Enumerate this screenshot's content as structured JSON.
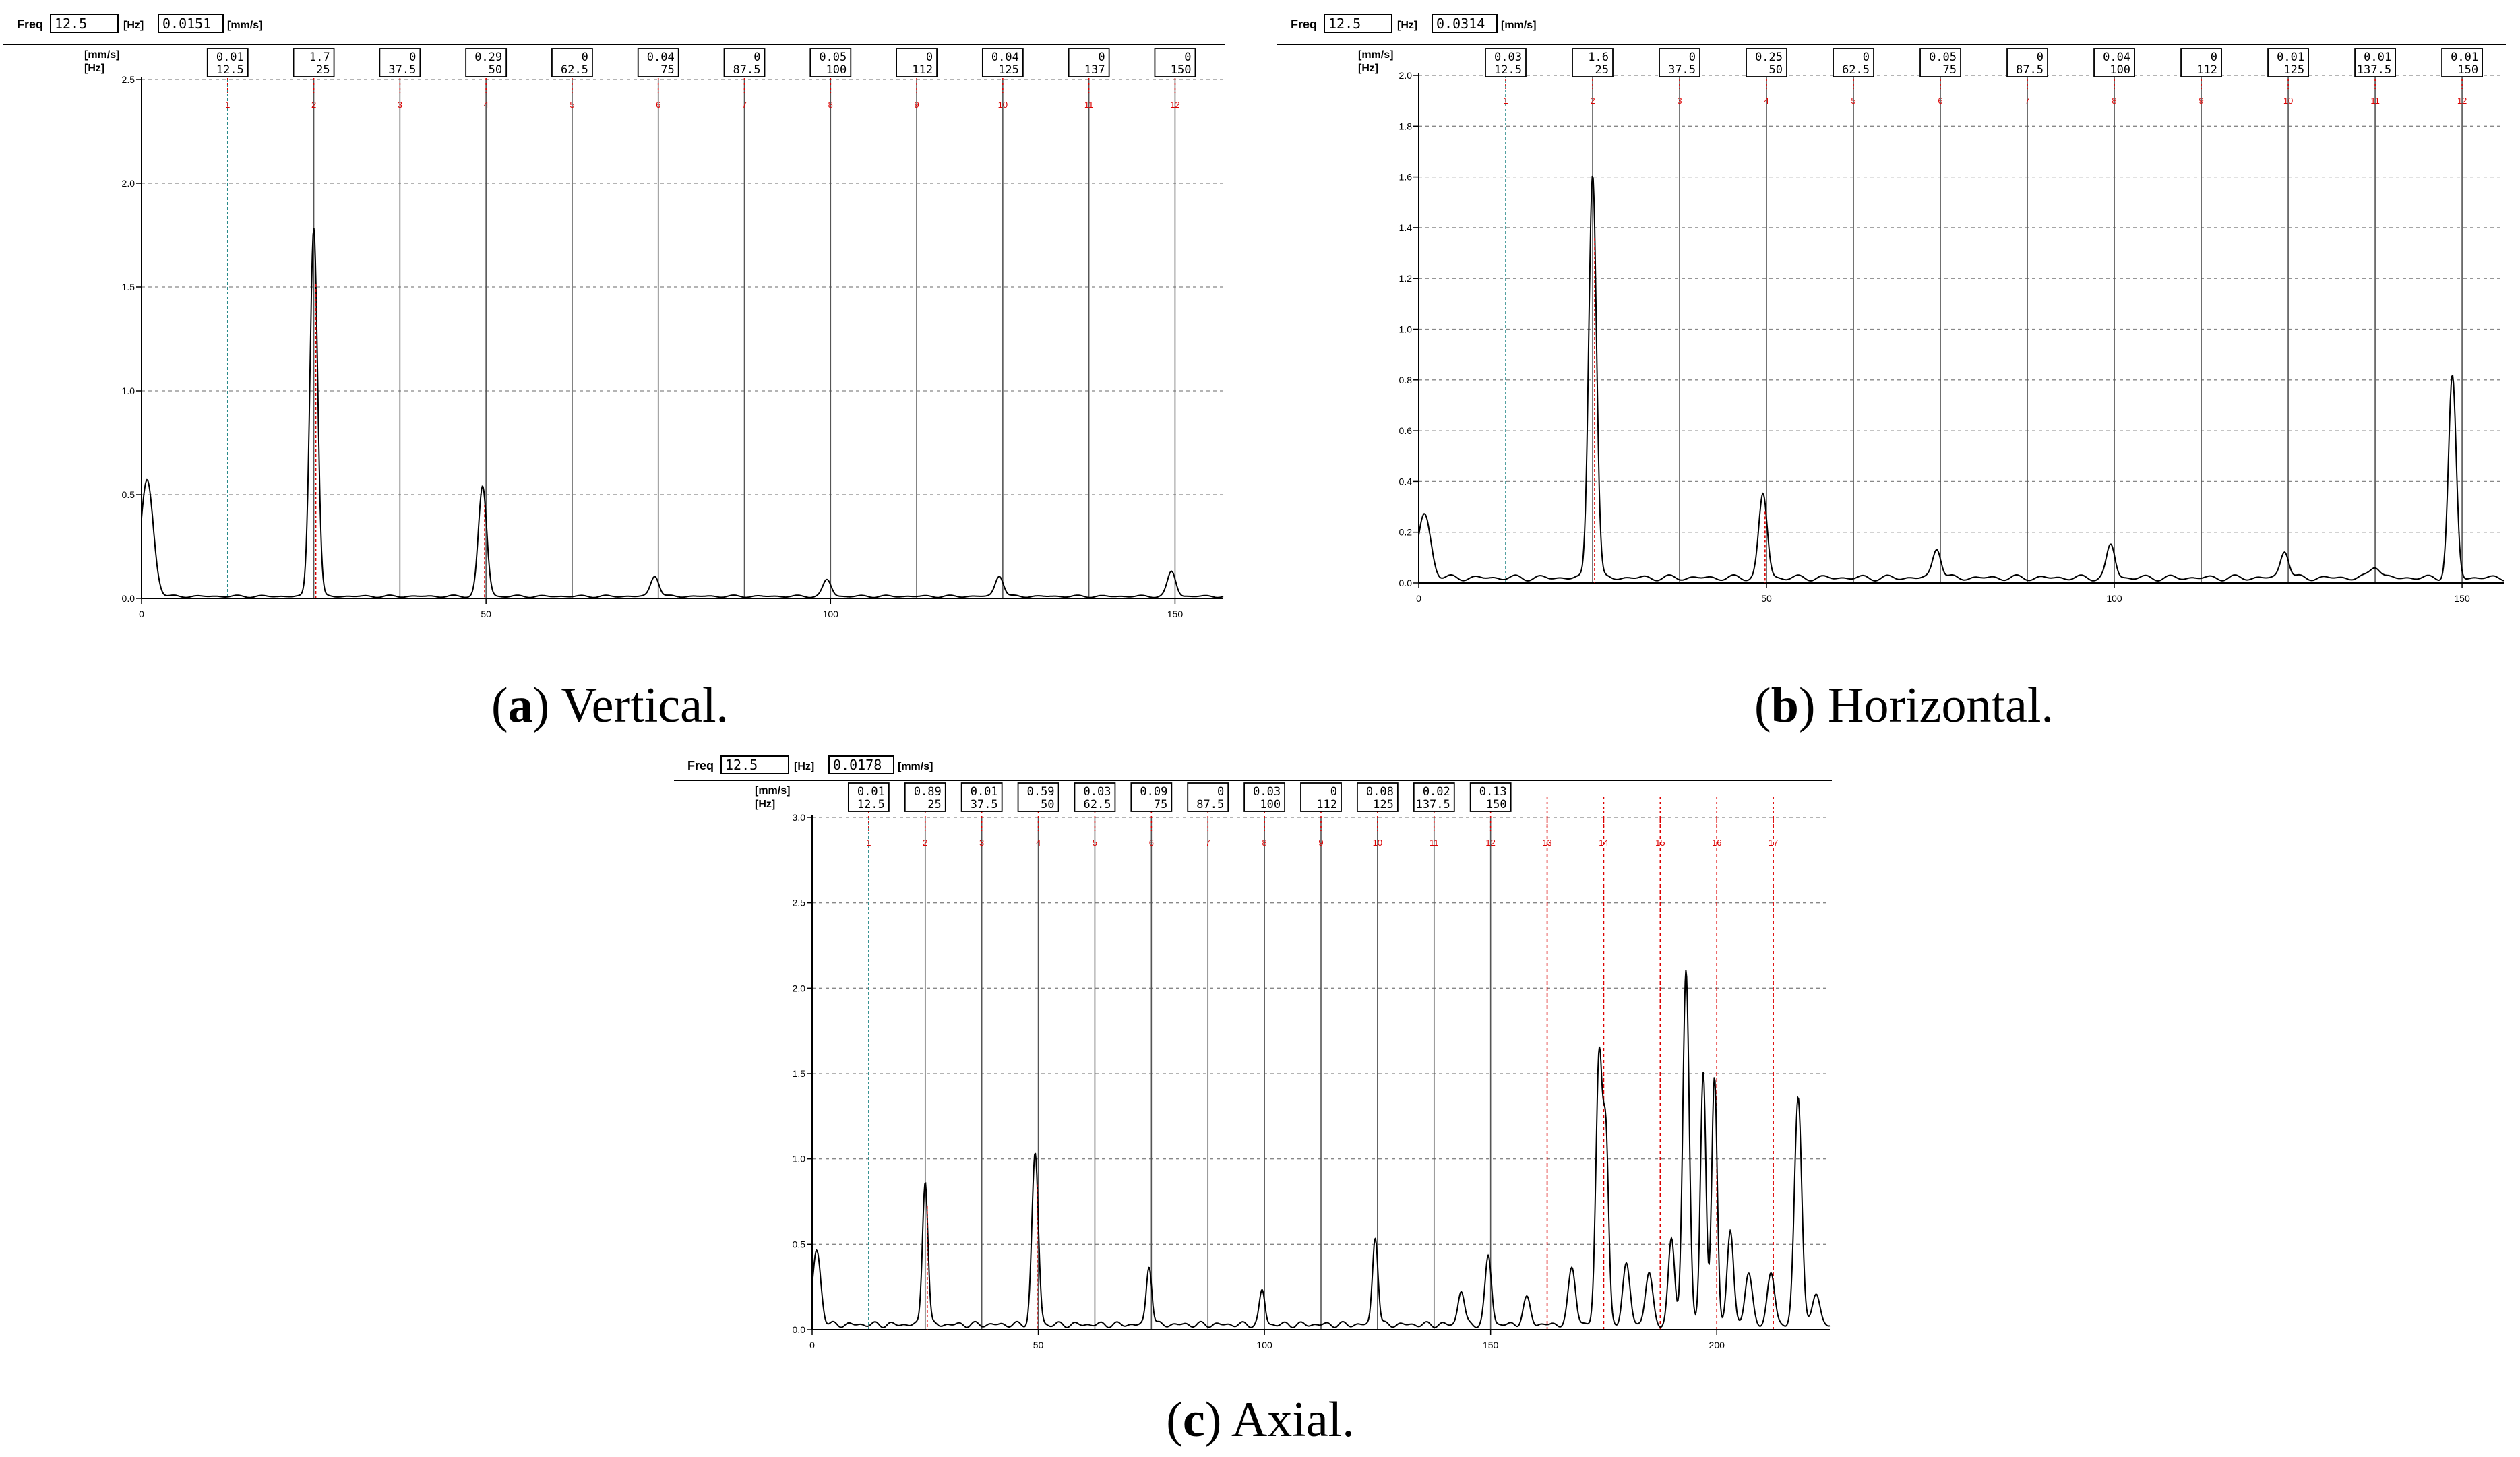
{
  "chart_data": [
    {
      "type": "line",
      "caption": {
        "letter": "a",
        "text": "Vertical."
      },
      "toolbar": {
        "freq_label": "Freq",
        "freq_value": "12.5",
        "freq_unit": "[Hz]",
        "amp_value": "0.0151",
        "amp_unit": "[mm/s]"
      },
      "units": {
        "y": "[mm/s]",
        "x": "[Hz]"
      },
      "xlim": [
        0,
        157
      ],
      "ylim": [
        0,
        2.5
      ],
      "yticks": [
        "0.0",
        "0.5",
        "1.0",
        "1.5",
        "2.0",
        "2.5"
      ],
      "xticks": [
        "0",
        "50",
        "100",
        "150"
      ],
      "markers": [
        {
          "num": "1",
          "freq": 12.5,
          "amp_label": "0.01",
          "freq_label": "12.5"
        },
        {
          "num": "2",
          "freq": 25,
          "amp_label": "1.7",
          "freq_label": "25"
        },
        {
          "num": "3",
          "freq": 37.5,
          "amp_label": "0",
          "freq_label": "37.5"
        },
        {
          "num": "4",
          "freq": 50,
          "amp_label": "0.29",
          "freq_label": "50"
        },
        {
          "num": "5",
          "freq": 62.5,
          "amp_label": "0",
          "freq_label": "62.5"
        },
        {
          "num": "6",
          "freq": 75,
          "amp_label": "0.04",
          "freq_label": "75"
        },
        {
          "num": "7",
          "freq": 87.5,
          "amp_label": "0",
          "freq_label": "87.5"
        },
        {
          "num": "8",
          "freq": 100,
          "amp_label": "0.05",
          "freq_label": "100"
        },
        {
          "num": "9",
          "freq": 112.5,
          "amp_label": "0",
          "freq_label": "112"
        },
        {
          "num": "10",
          "freq": 125,
          "amp_label": "0.04",
          "freq_label": "125"
        },
        {
          "num": "11",
          "freq": 137.5,
          "amp_label": "0",
          "freq_label": "137"
        },
        {
          "num": "12",
          "freq": 150,
          "amp_label": "0",
          "freq_label": "150"
        }
      ],
      "baseline": 0.01,
      "peaks": [
        [
          0.8,
          0.56,
          0.9
        ],
        [
          25,
          1.78,
          0.55
        ],
        [
          49.5,
          0.53,
          0.6
        ],
        [
          74.5,
          0.1,
          0.6
        ],
        [
          99.5,
          0.08,
          0.6
        ],
        [
          124.5,
          0.1,
          0.6
        ],
        [
          149.5,
          0.12,
          0.6
        ]
      ]
    },
    {
      "type": "line",
      "caption": {
        "letter": "b",
        "text": "Horizontal."
      },
      "toolbar": {
        "freq_label": "Freq",
        "freq_value": "12.5",
        "freq_unit": "[Hz]",
        "amp_value": "0.0314",
        "amp_unit": "[mm/s]"
      },
      "units": {
        "y": "[mm/s]",
        "x": "[Hz]"
      },
      "xlim": [
        0,
        156
      ],
      "ylim": [
        0,
        2.0
      ],
      "yticks": [
        "0.0",
        "0.2",
        "0.4",
        "0.6",
        "0.8",
        "1.0",
        "1.2",
        "1.4",
        "1.6",
        "1.8",
        "2.0"
      ],
      "xticks": [
        "0",
        "50",
        "100",
        "150"
      ],
      "markers": [
        {
          "num": "1",
          "freq": 12.5,
          "amp_label": "0.03",
          "freq_label": "12.5"
        },
        {
          "num": "2",
          "freq": 25,
          "amp_label": "1.6",
          "freq_label": "25"
        },
        {
          "num": "3",
          "freq": 37.5,
          "amp_label": "0",
          "freq_label": "37.5"
        },
        {
          "num": "4",
          "freq": 50,
          "amp_label": "0.25",
          "freq_label": "50"
        },
        {
          "num": "5",
          "freq": 62.5,
          "amp_label": "0",
          "freq_label": "62.5"
        },
        {
          "num": "6",
          "freq": 75,
          "amp_label": "0.05",
          "freq_label": "75"
        },
        {
          "num": "7",
          "freq": 87.5,
          "amp_label": "0",
          "freq_label": "87.5"
        },
        {
          "num": "8",
          "freq": 100,
          "amp_label": "0.04",
          "freq_label": "100"
        },
        {
          "num": "9",
          "freq": 112.5,
          "amp_label": "0",
          "freq_label": "112"
        },
        {
          "num": "10",
          "freq": 125,
          "amp_label": "0.01",
          "freq_label": "125"
        },
        {
          "num": "11",
          "freq": 137.5,
          "amp_label": "0.01",
          "freq_label": "137.5"
        },
        {
          "num": "12",
          "freq": 150,
          "amp_label": "0.01",
          "freq_label": "150"
        }
      ],
      "baseline": 0.02,
      "peaks": [
        [
          0.8,
          0.25,
          0.9
        ],
        [
          25,
          1.6,
          0.55
        ],
        [
          49.5,
          0.33,
          0.6
        ],
        [
          74.5,
          0.12,
          0.6
        ],
        [
          99.5,
          0.13,
          0.6
        ],
        [
          124.5,
          0.11,
          0.6
        ],
        [
          137.5,
          0.05,
          0.7
        ],
        [
          148.6,
          0.79,
          0.55
        ]
      ]
    },
    {
      "type": "line",
      "caption": {
        "letter": "c",
        "text": "Axial."
      },
      "toolbar": {
        "freq_label": "Freq",
        "freq_value": "12.5",
        "freq_unit": "[Hz]",
        "amp_value": "0.0178",
        "amp_unit": "[mm/s]"
      },
      "units": {
        "y": "[mm/s]",
        "x": "[Hz]"
      },
      "xlim": [
        0,
        225
      ],
      "ylim": [
        0,
        3.0
      ],
      "yticks": [
        "0.0",
        "0.5",
        "1.0",
        "1.5",
        "2.0",
        "2.5",
        "3.0"
      ],
      "xticks": [
        "0",
        "50",
        "100",
        "150",
        "200"
      ],
      "markers": [
        {
          "num": "1",
          "freq": 12.5,
          "amp_label": "0.01",
          "freq_label": "12.5"
        },
        {
          "num": "2",
          "freq": 25,
          "amp_label": "0.89",
          "freq_label": "25"
        },
        {
          "num": "3",
          "freq": 37.5,
          "amp_label": "0.01",
          "freq_label": "37.5"
        },
        {
          "num": "4",
          "freq": 50,
          "amp_label": "0.59",
          "freq_label": "50"
        },
        {
          "num": "5",
          "freq": 62.5,
          "amp_label": "0.03",
          "freq_label": "62.5"
        },
        {
          "num": "6",
          "freq": 75,
          "amp_label": "0.09",
          "freq_label": "75"
        },
        {
          "num": "7",
          "freq": 87.5,
          "amp_label": "0",
          "freq_label": "87.5"
        },
        {
          "num": "8",
          "freq": 100,
          "amp_label": "0.03",
          "freq_label": "100"
        },
        {
          "num": "9",
          "freq": 112.5,
          "amp_label": "0",
          "freq_label": "112"
        },
        {
          "num": "10",
          "freq": 125,
          "amp_label": "0.08",
          "freq_label": "125"
        },
        {
          "num": "11",
          "freq": 137.5,
          "amp_label": "0.02",
          "freq_label": "137.5"
        },
        {
          "num": "12",
          "freq": 150,
          "amp_label": "0.13",
          "freq_label": "150"
        },
        {
          "num": "13",
          "freq": 162.5,
          "amp_label": "",
          "freq_label": ""
        },
        {
          "num": "14",
          "freq": 175,
          "amp_label": "",
          "freq_label": ""
        },
        {
          "num": "15",
          "freq": 187.5,
          "amp_label": "",
          "freq_label": ""
        },
        {
          "num": "16",
          "freq": 200,
          "amp_label": "",
          "freq_label": ""
        },
        {
          "num": "17",
          "freq": 212.5,
          "amp_label": "",
          "freq_label": ""
        }
      ],
      "baseline": 0.03,
      "peaks": [
        [
          1,
          0.43,
          0.9
        ],
        [
          25,
          0.85,
          0.6
        ],
        [
          49.3,
          1.0,
          0.7
        ],
        [
          74.5,
          0.35,
          0.6
        ],
        [
          99.5,
          0.2,
          0.6
        ],
        [
          124.5,
          0.52,
          0.6
        ],
        [
          143.5,
          0.2,
          0.7
        ],
        [
          149.5,
          0.4,
          0.7
        ],
        [
          158,
          0.15,
          0.8
        ],
        [
          168,
          0.33,
          0.8
        ],
        [
          174,
          1.58,
          0.7
        ],
        [
          175.5,
          1.05,
          0.6
        ],
        [
          180,
          0.35,
          0.8
        ],
        [
          185,
          0.3,
          0.8
        ],
        [
          190,
          0.5,
          0.7
        ],
        [
          193.2,
          2.08,
          0.7
        ],
        [
          197,
          1.5,
          0.6
        ],
        [
          199.5,
          1.45,
          0.6
        ],
        [
          203,
          0.55,
          0.7
        ],
        [
          207,
          0.3,
          0.8
        ],
        [
          212,
          0.3,
          0.8
        ],
        [
          218,
          1.33,
          0.8
        ],
        [
          222,
          0.18,
          0.8
        ]
      ]
    }
  ]
}
